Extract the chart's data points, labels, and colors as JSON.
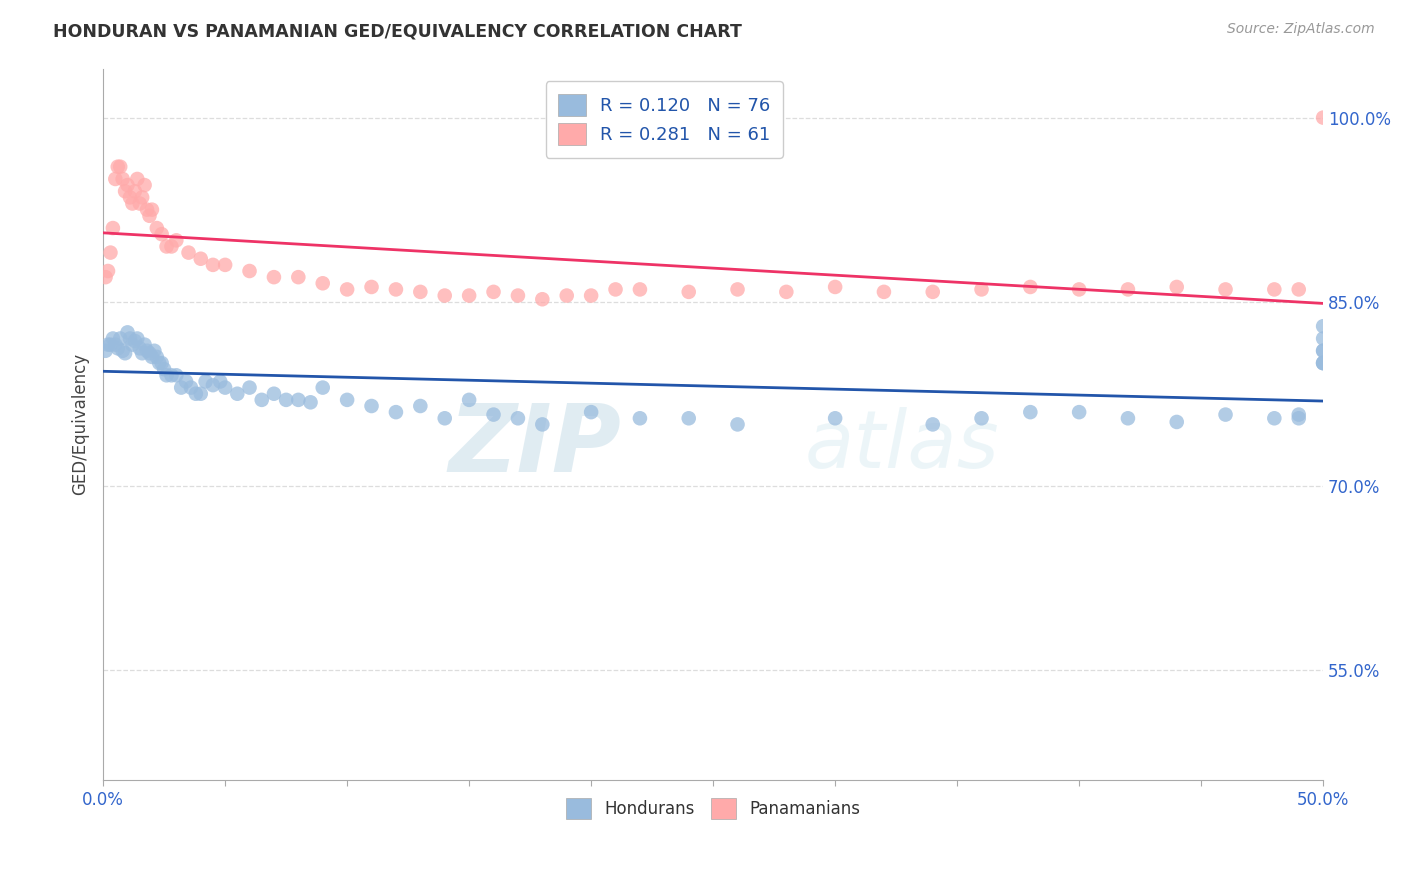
{
  "title": "HONDURAN VS PANAMANIAN GED/EQUIVALENCY CORRELATION CHART",
  "source": "Source: ZipAtlas.com",
  "ylabel": "GED/Equivalency",
  "xlim": [
    0.0,
    0.5
  ],
  "ylim": [
    0.46,
    1.04
  ],
  "xticks": [
    0.0,
    0.05,
    0.1,
    0.15,
    0.2,
    0.25,
    0.3,
    0.35,
    0.4,
    0.45,
    0.5
  ],
  "xtick_labels": [
    "0.0%",
    "",
    "",
    "",
    "",
    "",
    "",
    "",
    "",
    "",
    "50.0%"
  ],
  "ytick_positions": [
    0.55,
    0.7,
    0.85,
    1.0
  ],
  "ytick_labels": [
    "55.0%",
    "70.0%",
    "85.0%",
    "100.0%"
  ],
  "blue_color": "#99BBDD",
  "pink_color": "#FFAAAA",
  "blue_line_color": "#2255AA",
  "pink_line_color": "#EE3366",
  "blue_R": 0.12,
  "blue_N": 76,
  "pink_R": 0.281,
  "pink_N": 61,
  "watermark_zip": "ZIP",
  "watermark_atlas": "atlas",
  "background_color": "#FFFFFF",
  "grid_color": "#DDDDDD",
  "blue_x": [
    0.001,
    0.002,
    0.003,
    0.004,
    0.005,
    0.006,
    0.007,
    0.008,
    0.009,
    0.01,
    0.011,
    0.012,
    0.013,
    0.014,
    0.015,
    0.016,
    0.017,
    0.018,
    0.019,
    0.02,
    0.021,
    0.022,
    0.023,
    0.024,
    0.025,
    0.026,
    0.028,
    0.03,
    0.032,
    0.034,
    0.036,
    0.038,
    0.04,
    0.042,
    0.045,
    0.048,
    0.05,
    0.055,
    0.06,
    0.065,
    0.07,
    0.075,
    0.08,
    0.085,
    0.09,
    0.1,
    0.11,
    0.12,
    0.13,
    0.14,
    0.15,
    0.16,
    0.17,
    0.18,
    0.2,
    0.22,
    0.24,
    0.26,
    0.3,
    0.34,
    0.36,
    0.38,
    0.4,
    0.42,
    0.44,
    0.46,
    0.48,
    0.49,
    0.49,
    0.5,
    0.5,
    0.5,
    0.5,
    0.5,
    0.5,
    0.5
  ],
  "blue_y": [
    0.81,
    0.815,
    0.815,
    0.82,
    0.815,
    0.812,
    0.82,
    0.81,
    0.808,
    0.825,
    0.82,
    0.815,
    0.818,
    0.82,
    0.812,
    0.808,
    0.815,
    0.81,
    0.808,
    0.805,
    0.81,
    0.805,
    0.8,
    0.8,
    0.795,
    0.79,
    0.79,
    0.79,
    0.78,
    0.785,
    0.78,
    0.775,
    0.775,
    0.785,
    0.782,
    0.785,
    0.78,
    0.775,
    0.78,
    0.77,
    0.775,
    0.77,
    0.77,
    0.768,
    0.78,
    0.77,
    0.765,
    0.76,
    0.765,
    0.755,
    0.77,
    0.758,
    0.755,
    0.75,
    0.76,
    0.755,
    0.755,
    0.75,
    0.755,
    0.75,
    0.755,
    0.76,
    0.76,
    0.755,
    0.752,
    0.758,
    0.755,
    0.758,
    0.755,
    0.8,
    0.83,
    0.81,
    0.82,
    0.8,
    0.81,
    0.8
  ],
  "pink_x": [
    0.001,
    0.002,
    0.003,
    0.004,
    0.005,
    0.006,
    0.007,
    0.008,
    0.009,
    0.01,
    0.011,
    0.012,
    0.013,
    0.014,
    0.015,
    0.016,
    0.017,
    0.018,
    0.019,
    0.02,
    0.022,
    0.024,
    0.026,
    0.028,
    0.03,
    0.035,
    0.04,
    0.045,
    0.05,
    0.06,
    0.07,
    0.08,
    0.09,
    0.1,
    0.11,
    0.12,
    0.13,
    0.14,
    0.15,
    0.16,
    0.17,
    0.18,
    0.19,
    0.2,
    0.21,
    0.22,
    0.24,
    0.26,
    0.28,
    0.3,
    0.32,
    0.34,
    0.36,
    0.38,
    0.4,
    0.42,
    0.44,
    0.46,
    0.48,
    0.49,
    0.5
  ],
  "pink_y": [
    0.87,
    0.875,
    0.89,
    0.91,
    0.95,
    0.96,
    0.96,
    0.95,
    0.94,
    0.945,
    0.935,
    0.93,
    0.94,
    0.95,
    0.93,
    0.935,
    0.945,
    0.925,
    0.92,
    0.925,
    0.91,
    0.905,
    0.895,
    0.895,
    0.9,
    0.89,
    0.885,
    0.88,
    0.88,
    0.875,
    0.87,
    0.87,
    0.865,
    0.86,
    0.862,
    0.86,
    0.858,
    0.855,
    0.855,
    0.858,
    0.855,
    0.852,
    0.855,
    0.855,
    0.86,
    0.86,
    0.858,
    0.86,
    0.858,
    0.862,
    0.858,
    0.858,
    0.86,
    0.862,
    0.86,
    0.86,
    0.862,
    0.86,
    0.86,
    0.86,
    1.0
  ]
}
